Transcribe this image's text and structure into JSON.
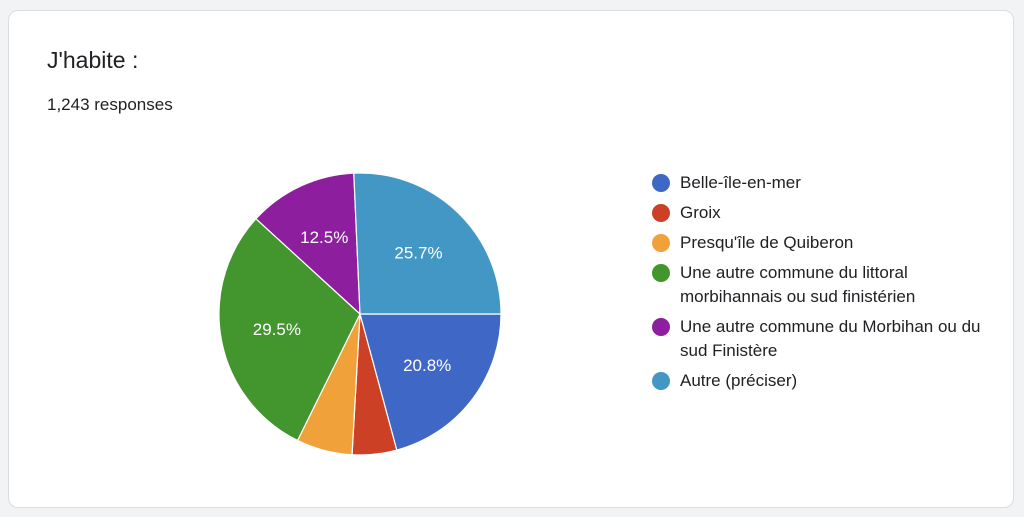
{
  "card": {
    "title": "J'habite :",
    "responses": "1,243 responses"
  },
  "chart_data": {
    "type": "pie",
    "title": "J'habite :",
    "start_angle_deg": 0,
    "slices": [
      {
        "name": "Belle-île-en-mer",
        "value": 20.8,
        "label": "20.8%",
        "color": "#3f67c6"
      },
      {
        "name": "Groix",
        "value": 5.1,
        "label": "",
        "color": "#cc4125"
      },
      {
        "name": "Presqu'île de Quiberon",
        "value": 6.4,
        "label": "",
        "color": "#f1a13a"
      },
      {
        "name": "Une autre commune du littoral morbihannais ou sud finistérien",
        "value": 29.5,
        "label": "29.5%",
        "color": "#43952e"
      },
      {
        "name": "Une autre commune du Morbihan ou du sud Finistère",
        "value": 12.5,
        "label": "12.5%",
        "color": "#8d1f9e"
      },
      {
        "name": "Autre (préciser)",
        "value": 25.7,
        "label": "25.7%",
        "color": "#4397c5"
      }
    ],
    "legend_position": "right"
  }
}
